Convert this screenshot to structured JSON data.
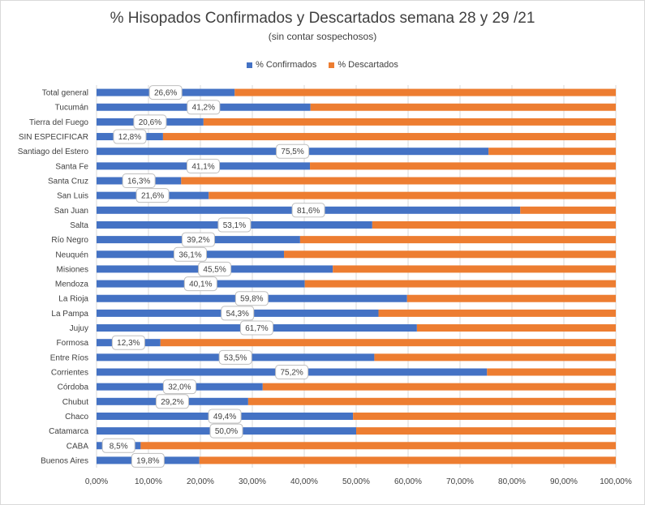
{
  "chart_data": {
    "type": "bar",
    "orientation": "horizontal",
    "stacked": "percent",
    "title": "% Hisopados Confirmados y Descartados semana 28 y 29 /21",
    "subtitle": "(sin contar sospechosos)",
    "xlim": [
      0,
      100
    ],
    "x_ticks": [
      "0,00%",
      "10,00%",
      "20,00%",
      "30,00%",
      "40,00%",
      "50,00%",
      "60,00%",
      "70,00%",
      "80,00%",
      "90,00%",
      "100,00%"
    ],
    "grid": true,
    "legend_position": "top",
    "categories": [
      "Total general",
      "Tucumán",
      "Tierra del Fuego",
      "SIN ESPECIFICAR",
      "Santiago del Estero",
      "Santa Fe",
      "Santa Cruz",
      "San Luis",
      "San Juan",
      "Salta",
      "Río Negro",
      "Neuquén",
      "Misiones",
      "Mendoza",
      "La Rioja",
      "La Pampa",
      "Jujuy",
      "Formosa",
      "Entre Ríos",
      "Corrientes",
      "Córdoba",
      "Chubut",
      "Chaco",
      "Catamarca",
      "CABA",
      "Buenos Aires"
    ],
    "series": [
      {
        "name": "% Confirmados",
        "color": "#4472c4",
        "values": [
          26.6,
          41.2,
          20.6,
          12.8,
          75.5,
          41.1,
          16.3,
          21.6,
          81.6,
          53.1,
          39.2,
          36.1,
          45.5,
          40.1,
          59.8,
          54.3,
          61.7,
          12.3,
          53.5,
          75.2,
          32.0,
          29.2,
          49.4,
          50.0,
          8.5,
          19.8
        ],
        "labels": [
          "26,6%",
          "41,2%",
          "20,6%",
          "12,8%",
          "75,5%",
          "41,1%",
          "16,3%",
          "21,6%",
          "81,6%",
          "53,1%",
          "39,2%",
          "36,1%",
          "45,5%",
          "40,1%",
          "59,8%",
          "54,3%",
          "61,7%",
          "12,3%",
          "53,5%",
          "75,2%",
          "32,0%",
          "29,2%",
          "49,4%",
          "50,0%",
          "8,5%",
          "19,8%"
        ]
      },
      {
        "name": "% Descartados",
        "color": "#ed7d31",
        "values": [
          73.4,
          58.8,
          79.4,
          87.2,
          24.5,
          58.9,
          83.7,
          78.4,
          18.4,
          46.9,
          60.8,
          63.9,
          54.5,
          59.9,
          40.2,
          45.7,
          38.3,
          87.7,
          46.5,
          24.8,
          68.0,
          70.8,
          50.6,
          50.0,
          91.5,
          80.2
        ]
      }
    ]
  }
}
